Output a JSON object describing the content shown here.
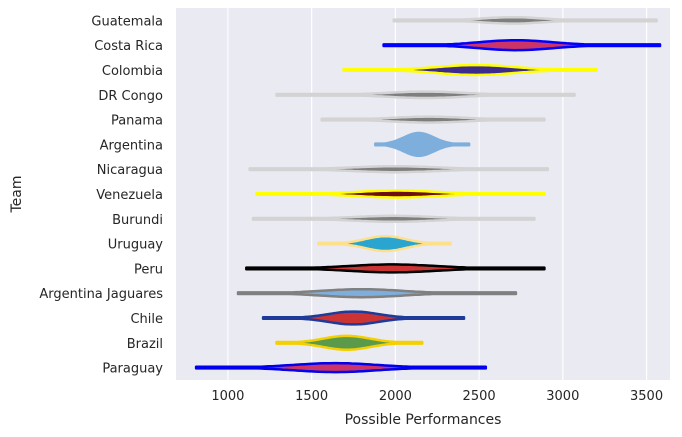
{
  "chart_data": {
    "type": "violin",
    "orientation": "horizontal",
    "xlabel": "Possible Performances",
    "ylabel": "Team",
    "xlim": [
      690,
      3640
    ],
    "xticks": [
      1000,
      1500,
      2000,
      2500,
      3000,
      3500
    ],
    "grid": true,
    "background": "#eaeaf2",
    "series": [
      {
        "name": "Guatemala",
        "min": 1990,
        "max": 3560,
        "peak": 2700,
        "spread": 180,
        "width": 0.13,
        "fill": "#7f7f7f",
        "edge": "#d3d3d3"
      },
      {
        "name": "Costa Rica",
        "min": 1930,
        "max": 3580,
        "peak": 2720,
        "spread": 220,
        "width": 0.2,
        "fill": "#cc3366",
        "edge": "#0000ff"
      },
      {
        "name": "Colombia",
        "min": 1690,
        "max": 3200,
        "peak": 2480,
        "spread": 230,
        "width": 0.2,
        "fill": "#3d2c8d",
        "edge": "#ffff00"
      },
      {
        "name": "DR Congo",
        "min": 1290,
        "max": 3070,
        "peak": 2180,
        "spread": 230,
        "width": 0.13,
        "fill": "#7f7f7f",
        "edge": "#d3d3d3"
      },
      {
        "name": "Panama",
        "min": 1560,
        "max": 2890,
        "peak": 2200,
        "spread": 220,
        "width": 0.12,
        "fill": "#7f7f7f",
        "edge": "#d3d3d3"
      },
      {
        "name": "Argentina",
        "min": 1880,
        "max": 2440,
        "peak": 2140,
        "spread": 90,
        "width": 0.46,
        "fill": "#7eaedb",
        "edge": "#7eaedb"
      },
      {
        "name": "Nicaragua",
        "min": 1130,
        "max": 2910,
        "peak": 2000,
        "spread": 260,
        "width": 0.12,
        "fill": "#7f7f7f",
        "edge": "#d3d3d3"
      },
      {
        "name": "Venezuela",
        "min": 1170,
        "max": 2890,
        "peak": 2010,
        "spread": 240,
        "width": 0.14,
        "fill": "#6b0f0f",
        "edge": "#ffff00"
      },
      {
        "name": "Burundi",
        "min": 1150,
        "max": 2830,
        "peak": 1990,
        "spread": 240,
        "width": 0.12,
        "fill": "#7f7f7f",
        "edge": "#d3d3d3"
      },
      {
        "name": "Uruguay",
        "min": 1540,
        "max": 2330,
        "peak": 1940,
        "spread": 120,
        "width": 0.3,
        "fill": "#2aa5cf",
        "edge": "#ffe08a"
      },
      {
        "name": "Peru",
        "min": 1110,
        "max": 2890,
        "peak": 1980,
        "spread": 260,
        "width": 0.16,
        "fill": "#cc3333",
        "edge": "#000000"
      },
      {
        "name": "Argentina Jaguares",
        "min": 1060,
        "max": 2720,
        "peak": 1800,
        "spread": 240,
        "width": 0.16,
        "fill": "#7eaedb",
        "edge": "#808080"
      },
      {
        "name": "Chile",
        "min": 1210,
        "max": 2410,
        "peak": 1750,
        "spread": 150,
        "width": 0.26,
        "fill": "#cc3333",
        "edge": "#1f3a99"
      },
      {
        "name": "Brazil",
        "min": 1290,
        "max": 2160,
        "peak": 1710,
        "spread": 140,
        "width": 0.28,
        "fill": "#5a9a4a",
        "edge": "#f5d000"
      },
      {
        "name": "Paraguay",
        "min": 810,
        "max": 2540,
        "peak": 1640,
        "spread": 250,
        "width": 0.18,
        "fill": "#cc3366",
        "edge": "#0000ee"
      }
    ]
  }
}
